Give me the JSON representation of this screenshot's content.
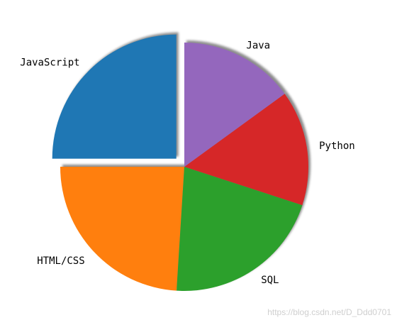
{
  "chart_data": {
    "type": "pie",
    "title": "",
    "startangle_deg": 90,
    "direction": "counterclockwise",
    "shadow": true,
    "slices": [
      {
        "label": "JavaScript",
        "value": 25,
        "explode": true,
        "color": "#1f77b4"
      },
      {
        "label": "HTML/CSS",
        "value": 24,
        "explode": false,
        "color": "#ff7f0e"
      },
      {
        "label": "SQL",
        "value": 21,
        "explode": false,
        "color": "#2ca02c"
      },
      {
        "label": "Python",
        "value": 15,
        "explode": false,
        "color": "#d62728"
      },
      {
        "label": "Java",
        "value": 15,
        "explode": false,
        "color": "#9467bd"
      }
    ]
  },
  "watermark": "https://blog.csdn.net/D_Ddd0701"
}
